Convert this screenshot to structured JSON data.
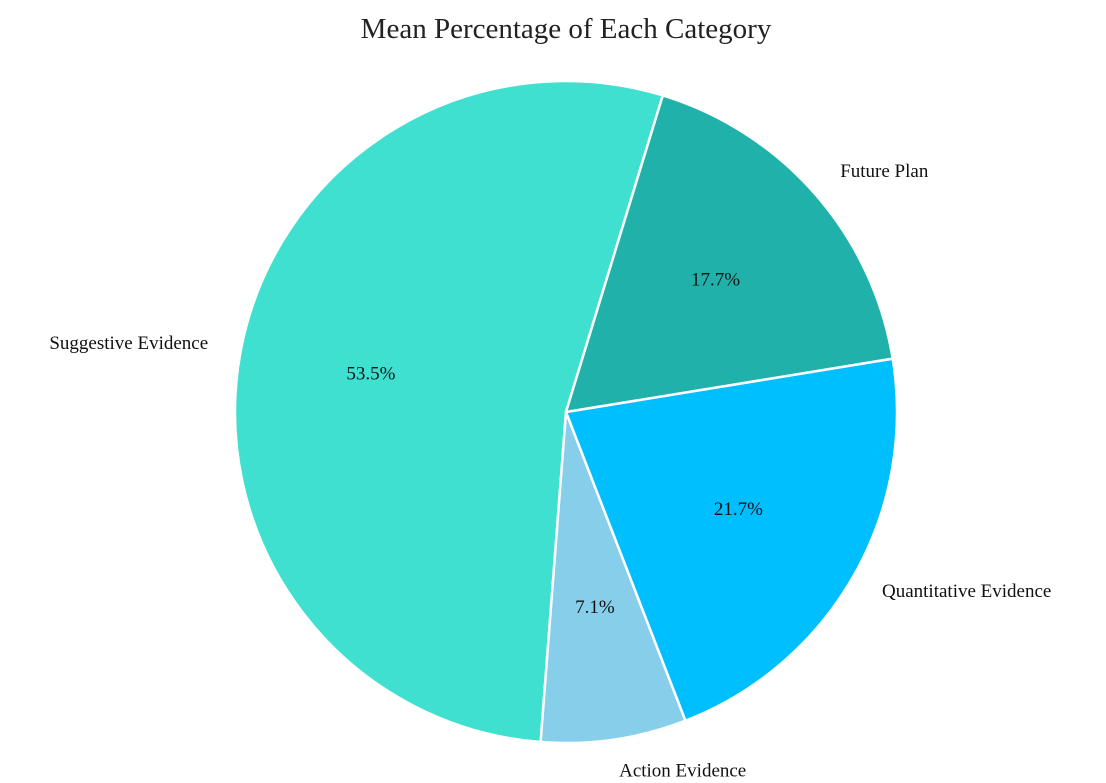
{
  "chart_data": {
    "type": "pie",
    "title": "Mean Percentage of Each Category",
    "slices": [
      {
        "label": "Suggestive Evidence",
        "value": 53.5,
        "pct_label": "53.5%",
        "color": "#40E0D0"
      },
      {
        "label": "Action Evidence",
        "value": 7.1,
        "pct_label": "7.1%",
        "color": "#87CEEB"
      },
      {
        "label": "Quantitative Evidence",
        "value": 21.7,
        "pct_label": "21.7%",
        "color": "#00BFFF"
      },
      {
        "label": "Future Plan",
        "value": 17.7,
        "pct_label": "17.7%",
        "color": "#20B2AA"
      }
    ],
    "start_angle_deg": 73,
    "direction": "counterclockwise",
    "edge_color": "#ffffff",
    "legend": "none"
  }
}
